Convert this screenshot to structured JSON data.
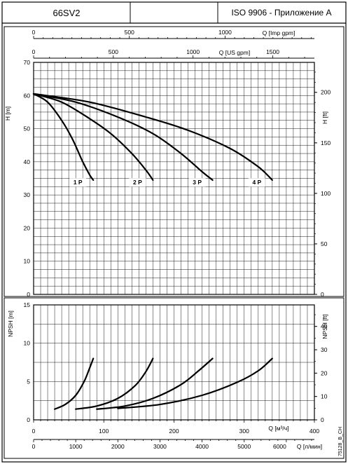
{
  "header": {
    "model": "66SV2",
    "blank": "",
    "standard": "ISO 9906 - Приложение А"
  },
  "chart_data": [
    {
      "type": "line",
      "panel": "head",
      "ylabel_left": "H [m]",
      "ylabel_right": "H [ft]",
      "ylim": [
        0,
        70
      ],
      "yticks": [
        0,
        10,
        20,
        30,
        40,
        50,
        60,
        70
      ],
      "yticks_right": [
        0,
        50,
        100,
        150,
        200
      ],
      "top_axis_imp": {
        "label": "Q [Imp gpm]",
        "ticks": [
          0,
          500,
          1000
        ]
      },
      "top_axis_us": {
        "label": "Q [US gpm]",
        "ticks": [
          0,
          500,
          1000,
          1500
        ]
      },
      "xlim": [
        0,
        400
      ],
      "grid": true,
      "series": [
        {
          "name": "1 P",
          "x": [
            0,
            20,
            40,
            55,
            70,
            80,
            85
          ],
          "y": [
            60.5,
            58,
            52.5,
            47,
            40,
            36,
            34.5
          ]
        },
        {
          "name": "2 P",
          "x": [
            0,
            40,
            80,
            110,
            140,
            160,
            170
          ],
          "y": [
            60.5,
            58,
            53,
            48.5,
            42.5,
            37.5,
            34.5
          ]
        },
        {
          "name": "3 P",
          "x": [
            0,
            60,
            120,
            170,
            210,
            240,
            255
          ],
          "y": [
            60.5,
            58,
            53.5,
            48.5,
            42.5,
            37,
            34.5
          ]
        },
        {
          "name": "4 P",
          "x": [
            0,
            80,
            160,
            220,
            280,
            320,
            340
          ],
          "y": [
            60.5,
            58,
            53.5,
            49.5,
            44,
            38.5,
            34.5
          ]
        }
      ]
    },
    {
      "type": "line",
      "panel": "npsh",
      "ylabel_left": "NPSH [m]",
      "ylabel_right": "NPSH [ft]",
      "ylim": [
        0,
        15
      ],
      "yticks": [
        0,
        5,
        10,
        15
      ],
      "yticks_right": [
        0,
        10,
        20,
        30,
        40
      ],
      "xlabel": "Q [м³/ч]",
      "xticks": [
        0,
        100,
        200,
        300,
        400
      ],
      "xlabel2": "Q [л/мин]",
      "xticks2": [
        0,
        1000,
        2000,
        3000,
        4000,
        5000,
        6000
      ],
      "xlim": [
        0,
        400
      ],
      "grid": true,
      "series": [
        {
          "x": [
            30,
            45,
            60,
            72,
            80,
            85
          ],
          "y": [
            1.4,
            2,
            3.2,
            5,
            6.8,
            8
          ]
        },
        {
          "x": [
            60,
            90,
            120,
            145,
            160,
            170
          ],
          "y": [
            1.4,
            1.8,
            2.8,
            4.5,
            6.3,
            8
          ]
        },
        {
          "x": [
            90,
            130,
            170,
            210,
            235,
            255
          ],
          "y": [
            1.4,
            1.8,
            2.8,
            4.6,
            6.4,
            8
          ]
        },
        {
          "x": [
            120,
            180,
            240,
            290,
            320,
            340
          ],
          "y": [
            1.5,
            2,
            3.2,
            4.9,
            6.4,
            8
          ]
        }
      ]
    }
  ],
  "corner_code": "75128_B_CH"
}
